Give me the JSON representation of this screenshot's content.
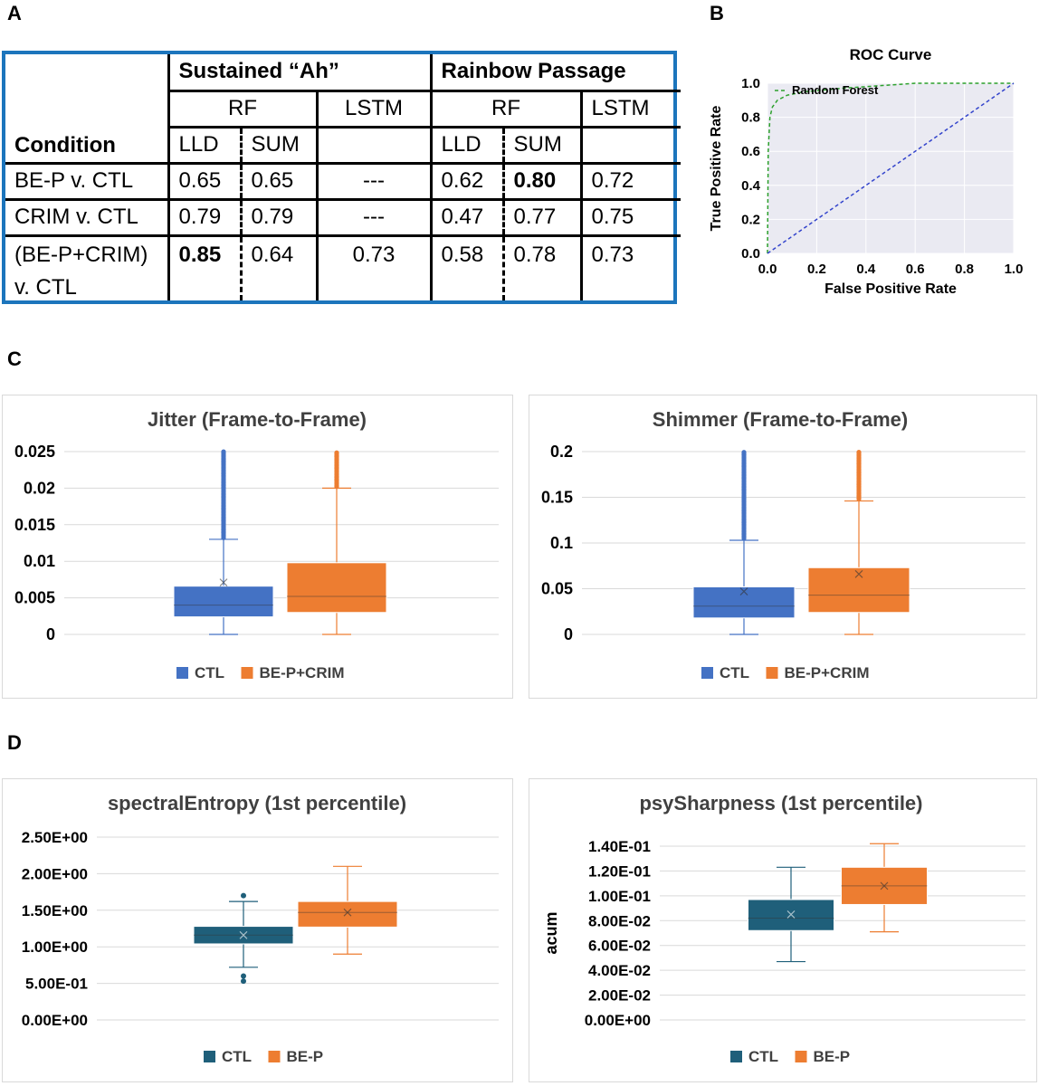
{
  "panels": {
    "a": "A",
    "b": "B",
    "c": "C",
    "d": "D"
  },
  "table": {
    "group_sustained": "Sustained “Ah”",
    "group_rainbow": "Rainbow Passage",
    "rf": "RF",
    "lstm": "LSTM",
    "lld": "LLD",
    "sum": "SUM",
    "condition": "Condition",
    "rows": [
      {
        "condition": "BE-P v. CTL",
        "cells": [
          "0.65",
          "0.65",
          "---",
          "0.62",
          "0.80",
          "0.72"
        ]
      },
      {
        "condition": "CRIM v. CTL",
        "cells": [
          "0.79",
          "0.79",
          "---",
          "0.47",
          "0.77",
          "0.75"
        ]
      },
      {
        "condition_line1": "(BE-P+CRIM)",
        "condition_line2": "v. CTL",
        "cells": [
          "0.85",
          "0.64",
          "0.73",
          "0.58",
          "0.78",
          "0.73"
        ]
      }
    ],
    "bold_cells": [
      "0.80",
      "0.85"
    ]
  },
  "chart_data": [
    {
      "id": "roc",
      "type": "line",
      "title": "ROC Curve",
      "xlabel": "False Positive Rate",
      "ylabel": "True Positive Rate",
      "xlim": [
        0,
        1
      ],
      "ylim": [
        0,
        1
      ],
      "xticks": [
        "0.0",
        "0.2",
        "0.4",
        "0.6",
        "0.8",
        "1.0"
      ],
      "yticks": [
        "0.0",
        "0.2",
        "0.4",
        "0.6",
        "0.8",
        "1.0"
      ],
      "grid": true,
      "series": [
        {
          "name": "Random Forest",
          "color": "#2ca02c",
          "style": "dashed",
          "x": [
            0,
            0.003,
            0.01,
            0.02,
            0.04,
            0.08,
            0.15,
            0.3,
            0.5,
            0.6,
            0.8,
            1.0
          ],
          "y": [
            0,
            0.6,
            0.8,
            0.86,
            0.9,
            0.93,
            0.95,
            0.97,
            0.99,
            1.0,
            1.0,
            1.0
          ]
        },
        {
          "name": "",
          "color": "#3344cc",
          "style": "dashed",
          "x": [
            0,
            1
          ],
          "y": [
            0,
            1
          ]
        }
      ],
      "legend": "top-left"
    },
    {
      "id": "jitter",
      "type": "box",
      "title": "Jitter (Frame-to-Frame)",
      "ylim": [
        0,
        0.025
      ],
      "yticks": [
        "0",
        "0.005",
        "0.01",
        "0.015",
        "0.02",
        "0.025"
      ],
      "ytick_values": [
        0,
        0.005,
        0.01,
        0.015,
        0.02,
        0.025
      ],
      "legend": "bottom",
      "series": [
        {
          "name": "CTL",
          "color": "#4472c4",
          "min": 0,
          "q1": 0.0024,
          "median": 0.004,
          "q3": 0.0066,
          "max": 0.013,
          "mean": 0.0071,
          "outliers_from": 0.0132
        },
        {
          "name": "BE-P+CRIM",
          "color": "#ed7d31",
          "min": 0,
          "q1": 0.003,
          "median": 0.0052,
          "q3": 0.0098,
          "max": 0.02,
          "mean": null,
          "outliers_from": 0.0202
        }
      ]
    },
    {
      "id": "shimmer",
      "type": "box",
      "title": "Shimmer (Frame-to-Frame)",
      "ylim": [
        0,
        0.2
      ],
      "yticks": [
        "0",
        "0.05",
        "0.1",
        "0.15",
        "0.2"
      ],
      "ytick_values": [
        0,
        0.05,
        0.1,
        0.15,
        0.2
      ],
      "legend": "bottom",
      "series": [
        {
          "name": "CTL",
          "color": "#4472c4",
          "min": 0,
          "q1": 0.018,
          "median": 0.031,
          "q3": 0.052,
          "max": 0.103,
          "mean": 0.047,
          "outliers_from": 0.105
        },
        {
          "name": "BE-P+CRIM",
          "color": "#ed7d31",
          "min": 0,
          "q1": 0.024,
          "median": 0.043,
          "q3": 0.073,
          "max": 0.146,
          "mean": 0.066,
          "outliers_from": 0.148
        }
      ]
    },
    {
      "id": "entropy",
      "type": "box",
      "title": "spectralEntropy (1st percentile)",
      "ylim": [
        0,
        2.5
      ],
      "yticks": [
        "0.00E+00",
        "5.00E-01",
        "1.00E+00",
        "1.50E+00",
        "2.00E+00",
        "2.50E+00"
      ],
      "ytick_values": [
        0,
        0.5,
        1.0,
        1.5,
        2.0,
        2.5
      ],
      "legend": "bottom",
      "series": [
        {
          "name": "CTL",
          "color": "#1f5f7a",
          "min": 0.72,
          "q1": 1.04,
          "median": 1.16,
          "q3": 1.28,
          "max": 1.62,
          "mean": 1.16,
          "outlier_points": [
            0.6,
            0.53,
            1.7
          ]
        },
        {
          "name": "BE-P",
          "color": "#ed7d31",
          "min": 0.9,
          "q1": 1.27,
          "median": 1.47,
          "q3": 1.62,
          "max": 2.1,
          "mean": 1.47,
          "outlier_points": []
        }
      ]
    },
    {
      "id": "sharpness",
      "type": "box",
      "title": "psySharpness (1st percentile)",
      "ylabel": "acum",
      "ylim": [
        0,
        0.14
      ],
      "yticks": [
        "0.00E+00",
        "2.00E-02",
        "4.00E-02",
        "6.00E-02",
        "8.00E-02",
        "1.00E-01",
        "1.20E-01",
        "1.40E-01"
      ],
      "ytick_values": [
        0,
        0.02,
        0.04,
        0.06,
        0.08,
        0.1,
        0.12,
        0.14
      ],
      "legend": "bottom",
      "series": [
        {
          "name": "CTL",
          "color": "#1f5f7a",
          "min": 0.047,
          "q1": 0.072,
          "median": 0.082,
          "q3": 0.097,
          "max": 0.123,
          "mean": 0.085,
          "outlier_points": []
        },
        {
          "name": "BE-P",
          "color": "#ed7d31",
          "min": 0.071,
          "q1": 0.093,
          "median": 0.108,
          "q3": 0.123,
          "max": 0.142,
          "mean": 0.108,
          "outlier_points": []
        }
      ]
    }
  ]
}
